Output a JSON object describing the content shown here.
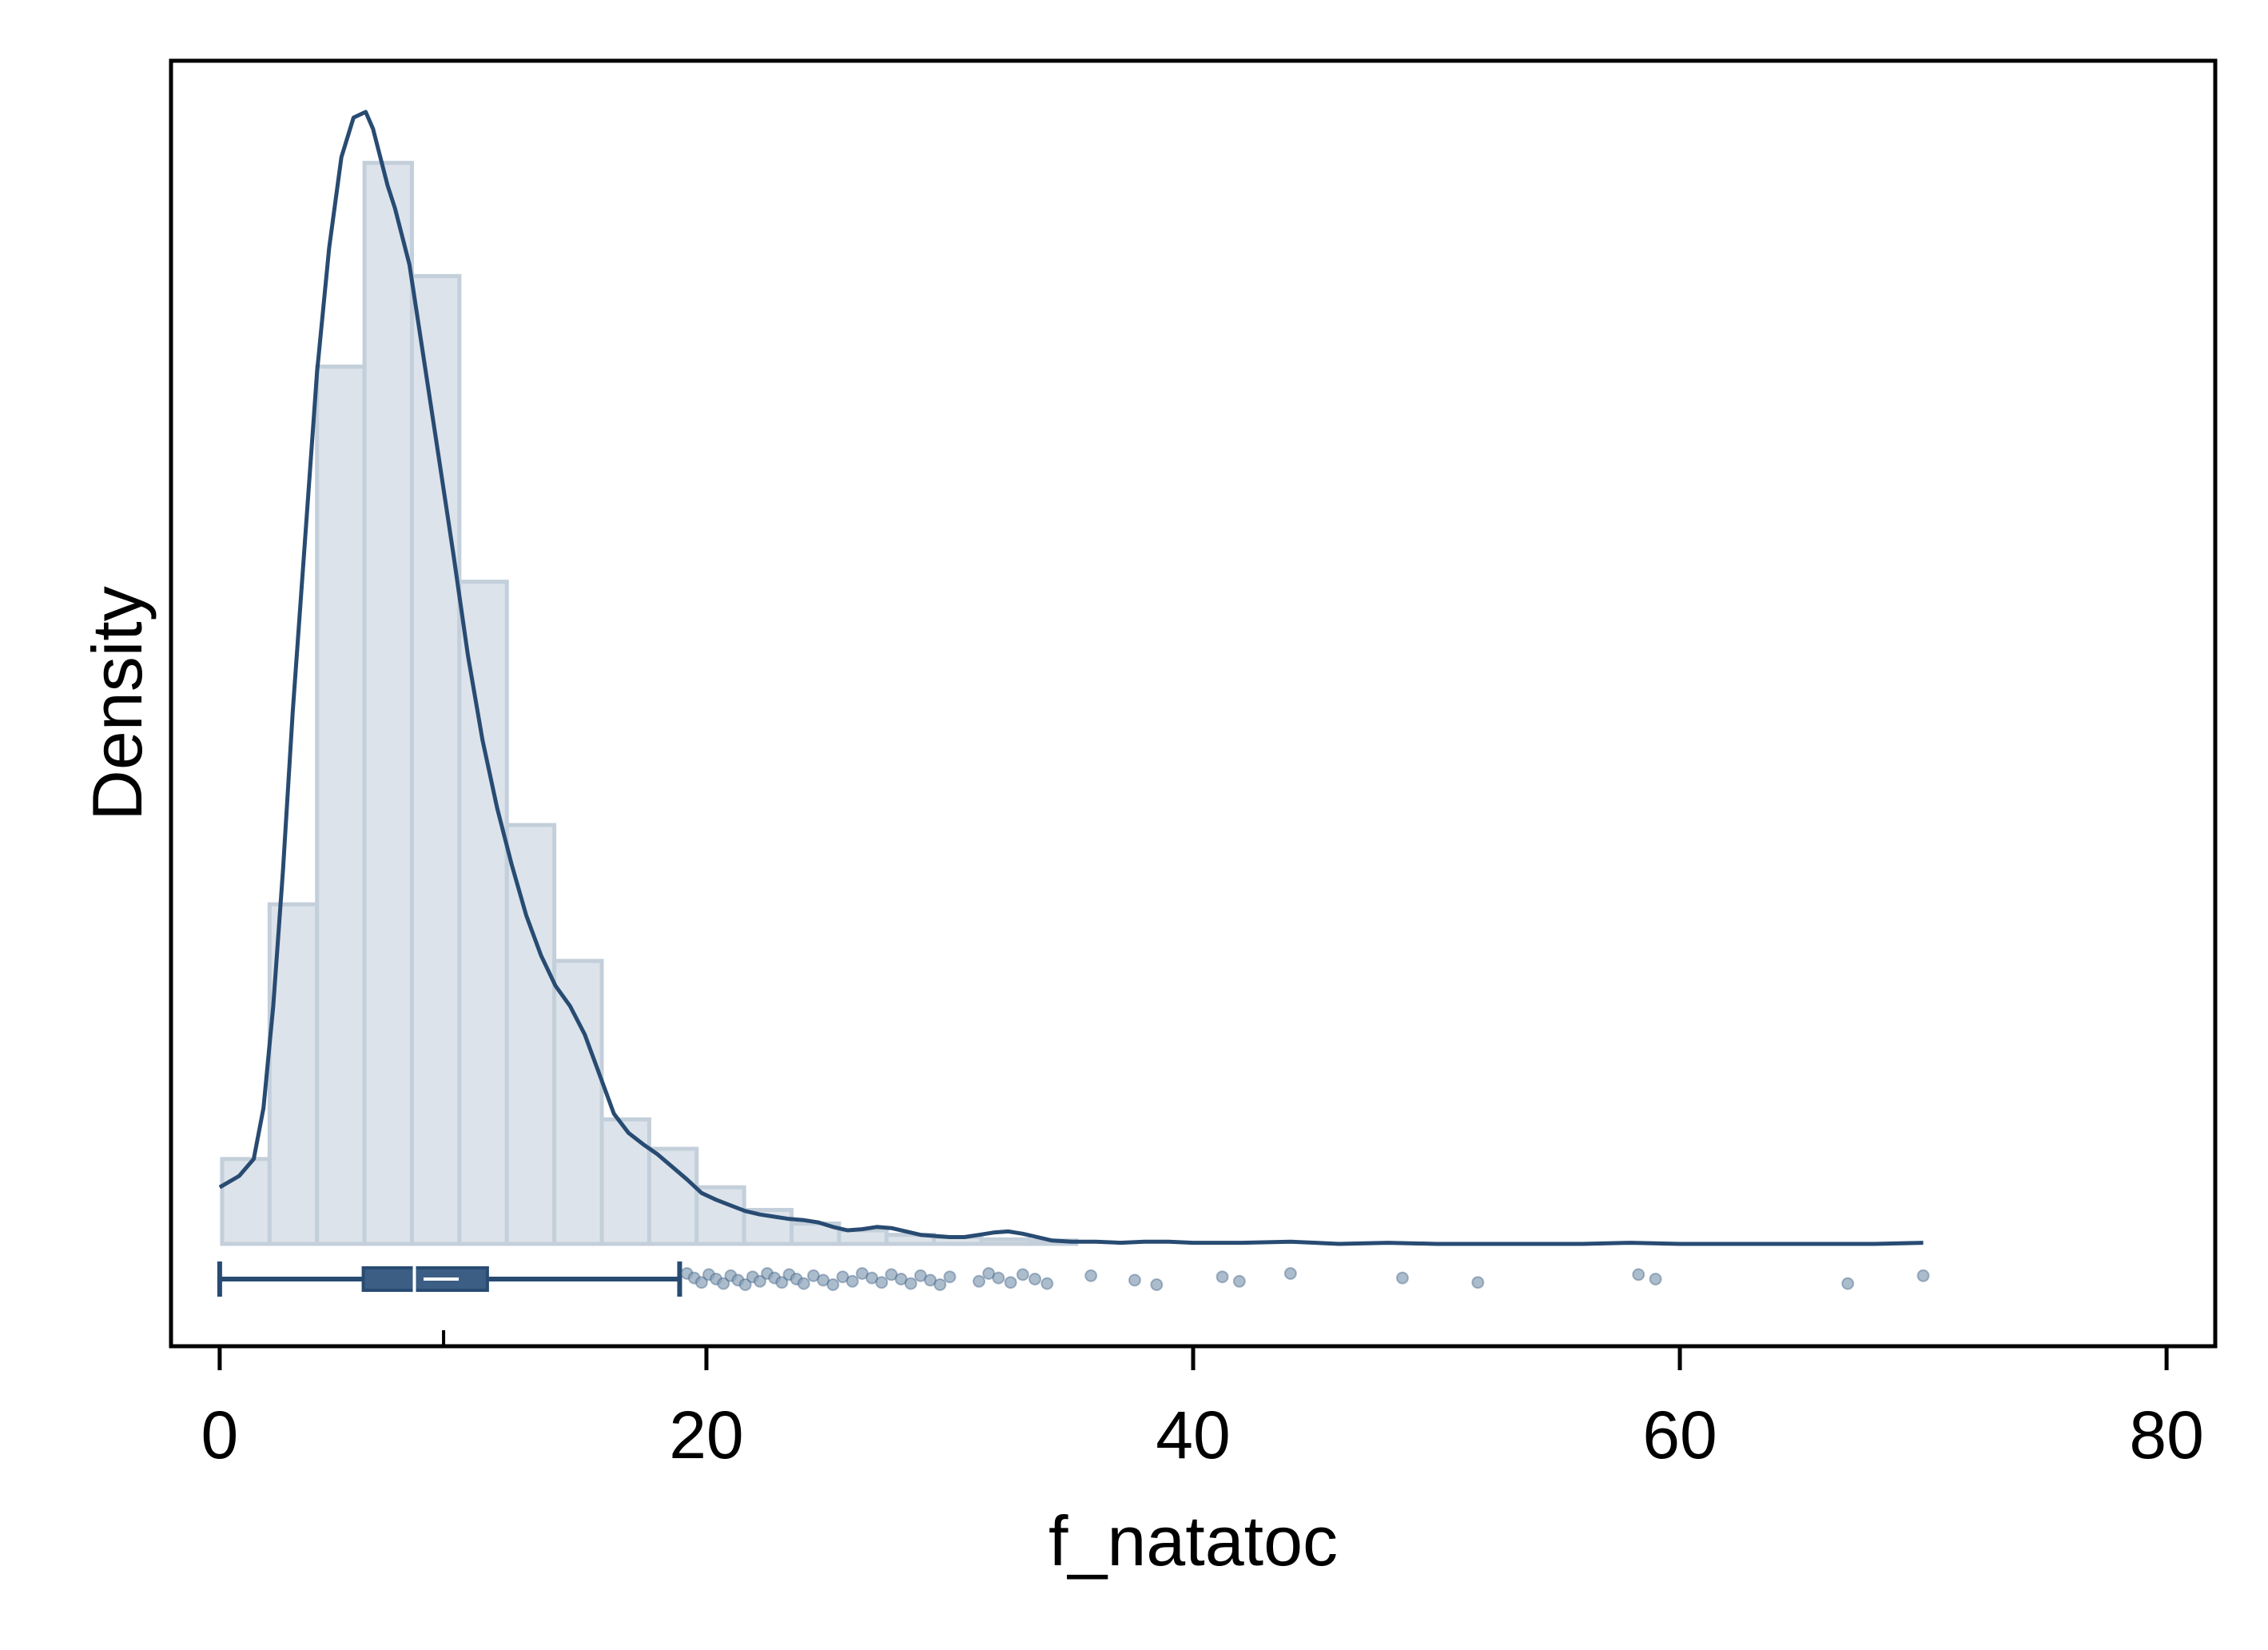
{
  "chart_data": {
    "type": "histogram",
    "xlabel": "f_natatoc",
    "ylabel": "Density",
    "xlim": [
      -2,
      82
    ],
    "ylim": [
      0,
      1.0
    ],
    "xticks": [
      0,
      20,
      40,
      60,
      80
    ],
    "xtick_labels": [
      "0",
      "20",
      "40",
      "60",
      "80"
    ],
    "yticks_shown": false,
    "grid": false,
    "legend": "none",
    "colors": {
      "bar_fill": "#dce3ea",
      "bar_edge": "#c3cfda",
      "kde_line": "#284b72",
      "box_fill": "#3c5e84",
      "box_line": "#284b72",
      "points": "#8fa5bb"
    },
    "histogram": {
      "bin_width": 1.95,
      "bin_start": 0.1,
      "heights": [
        0.075,
        0.3,
        0.775,
        0.955,
        0.855,
        0.585,
        0.37,
        0.25,
        0.11,
        0.084,
        0.05,
        0.03,
        0.018,
        0.012,
        0.008,
        0.006,
        0.004,
        0.003
      ]
    },
    "kde": {
      "x": [
        0,
        0.8,
        1.4,
        1.8,
        2.2,
        2.6,
        3.0,
        3.5,
        4.0,
        4.5,
        5.0,
        5.5,
        6.0,
        6.3,
        6.6,
        6.9,
        7.2,
        7.8,
        8.4,
        9.0,
        9.6,
        10.2,
        10.8,
        11.4,
        12.0,
        12.6,
        13.2,
        13.8,
        14.4,
        15.0,
        15.6,
        16.2,
        16.8,
        17.4,
        18.0,
        18.6,
        19.2,
        19.8,
        20.4,
        21.0,
        21.6,
        22.2,
        22.8,
        23.4,
        24.0,
        24.6,
        25.2,
        25.8,
        26.4,
        27.0,
        27.6,
        28.2,
        28.8,
        29.4,
        30.0,
        30.6,
        31.2,
        31.8,
        32.4,
        33.0,
        33.6,
        34.2,
        35.0,
        36.0,
        37.0,
        38.0,
        39.0,
        40.0,
        42.0,
        44.0,
        46.0,
        48.0,
        50.0,
        52.0,
        54.0,
        56.0,
        58.0,
        60.0,
        62.0,
        64.0,
        66.0,
        68.0,
        70.0
      ],
      "y": [
        0.05,
        0.06,
        0.075,
        0.12,
        0.21,
        0.33,
        0.47,
        0.62,
        0.77,
        0.88,
        0.96,
        0.995,
        1.0,
        0.985,
        0.96,
        0.935,
        0.915,
        0.865,
        0.78,
        0.695,
        0.61,
        0.52,
        0.445,
        0.385,
        0.335,
        0.29,
        0.255,
        0.228,
        0.21,
        0.185,
        0.15,
        0.115,
        0.098,
        0.088,
        0.079,
        0.068,
        0.057,
        0.045,
        0.039,
        0.034,
        0.029,
        0.026,
        0.024,
        0.022,
        0.021,
        0.019,
        0.015,
        0.012,
        0.013,
        0.015,
        0.014,
        0.011,
        0.008,
        0.007,
        0.006,
        0.006,
        0.008,
        0.01,
        0.011,
        0.009,
        0.006,
        0.003,
        0.002,
        0.002,
        0.001,
        0.002,
        0.002,
        0.001,
        0.001,
        0.002,
        0.0,
        0.001,
        0.0,
        0.0,
        0.0,
        0.0,
        0.001,
        0.0,
        0.0,
        0.0,
        0.0,
        0.0,
        0.001
      ]
    },
    "boxplot": {
      "min": 0.0,
      "q1": 5.9,
      "median": 8.0,
      "mean": 9.1,
      "q3": 11.0,
      "whisker_high": 18.9,
      "outliers": [
        19.2,
        19.5,
        19.8,
        20.1,
        20.4,
        20.7,
        21.0,
        21.3,
        21.6,
        21.9,
        22.2,
        22.5,
        22.8,
        23.1,
        23.4,
        23.7,
        24.0,
        24.4,
        24.8,
        25.2,
        25.6,
        26.0,
        26.4,
        26.8,
        27.2,
        27.6,
        28.0,
        28.4,
        28.8,
        29.2,
        29.6,
        30.0,
        31.2,
        31.6,
        32.0,
        32.5,
        33.0,
        33.5,
        34.0,
        35.8,
        37.6,
        38.5,
        41.2,
        41.9,
        44.0,
        48.6,
        51.7,
        58.3,
        59.0,
        66.9,
        70.0
      ]
    }
  }
}
